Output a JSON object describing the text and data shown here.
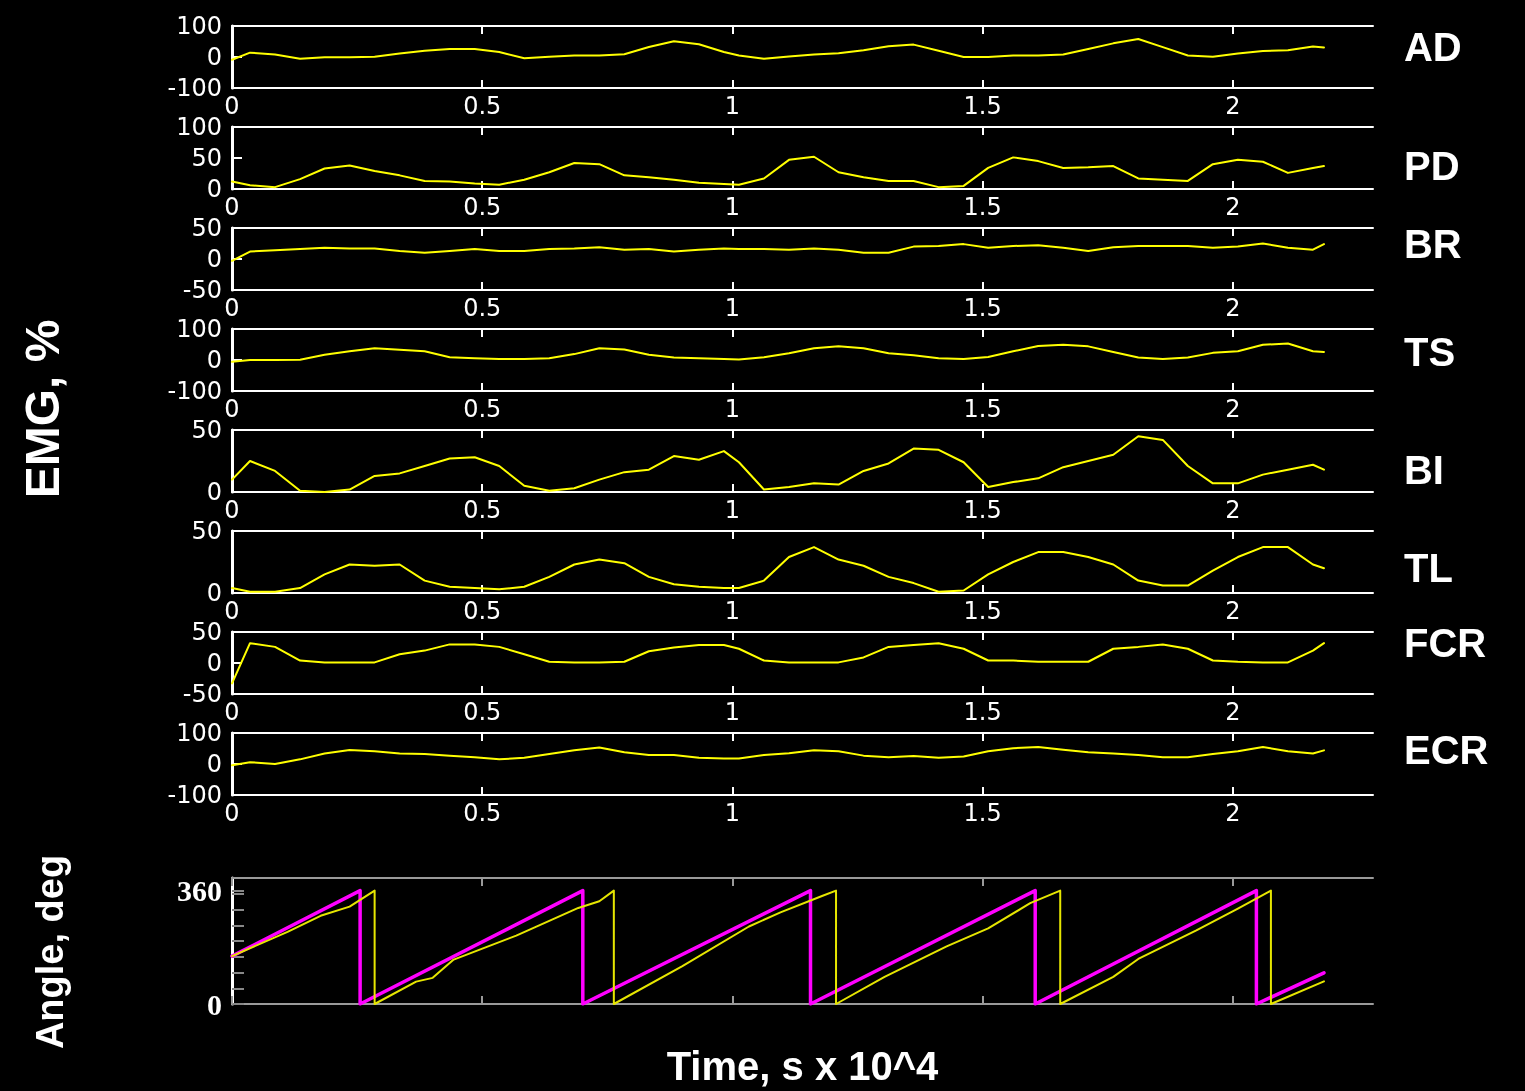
{
  "chart_data": [
    {
      "type": "line",
      "xlim": [
        0,
        2.28
      ],
      "xticks": [
        0,
        0.5,
        1,
        1.5,
        2
      ],
      "ylim": [
        -100,
        100
      ],
      "yticks": [
        -100,
        0,
        100
      ],
      "x": [
        0,
        0.036,
        0.086,
        0.136,
        0.185,
        0.235,
        0.285,
        0.335,
        0.385,
        0.435,
        0.485,
        0.534,
        0.584,
        0.634,
        0.684,
        0.734,
        0.784,
        0.833,
        0.883,
        0.933,
        0.983,
        1.013,
        1.063,
        1.113,
        1.163,
        1.212,
        1.262,
        1.312,
        1.362,
        1.412,
        1.462,
        1.511,
        1.561,
        1.611,
        1.661,
        1.711,
        1.761,
        1.811,
        1.86,
        1.91,
        1.96,
        2.01,
        2.06,
        2.11,
        2.16,
        2.182
      ],
      "series": [
        {
          "name": "AD",
          "color": "#ffff00",
          "values": [
            -9,
            14,
            8,
            -6,
            -1,
            -1,
            1,
            11,
            20,
            26,
            26,
            16,
            -4,
            1,
            5,
            5,
            9,
            32,
            51,
            41,
            16,
            5,
            -6,
            2,
            8,
            12,
            22,
            35,
            40,
            20,
            0,
            0,
            5,
            5,
            8,
            26,
            44,
            58,
            32,
            5,
            1,
            11,
            19,
            22,
            34,
            31
          ]
        }
      ]
    },
    {
      "type": "line",
      "xlim": [
        0,
        2.28
      ],
      "xticks": [
        0,
        0.5,
        1,
        1.5,
        2
      ],
      "ylim": [
        0,
        100
      ],
      "yticks": [
        0,
        50,
        100
      ],
      "x": [
        0,
        0.036,
        0.086,
        0.136,
        0.185,
        0.235,
        0.285,
        0.335,
        0.385,
        0.435,
        0.485,
        0.534,
        0.584,
        0.634,
        0.684,
        0.734,
        0.784,
        0.833,
        0.883,
        0.933,
        0.983,
        1.013,
        1.063,
        1.113,
        1.163,
        1.212,
        1.262,
        1.312,
        1.362,
        1.412,
        1.462,
        1.511,
        1.561,
        1.611,
        1.661,
        1.711,
        1.761,
        1.811,
        1.86,
        1.91,
        1.96,
        2.01,
        2.06,
        2.11,
        2.16,
        2.182
      ],
      "series": [
        {
          "name": "PD",
          "color": "#ffff00",
          "values": [
            12,
            6,
            3,
            16,
            33,
            38,
            29,
            22,
            13,
            12,
            9,
            7,
            15,
            27,
            42,
            40,
            22,
            19,
            15,
            10,
            8,
            7,
            17,
            47,
            52,
            27,
            19,
            13,
            13,
            3,
            5,
            34,
            51,
            45,
            34,
            35,
            37,
            17,
            15,
            13,
            40,
            47,
            44,
            26,
            34,
            37
          ]
        }
      ]
    },
    {
      "type": "line",
      "xlim": [
        0,
        2.28
      ],
      "xticks": [
        0,
        0.5,
        1,
        1.5,
        2
      ],
      "ylim": [
        -50,
        50
      ],
      "yticks": [
        -50,
        0,
        50
      ],
      "x": [
        0,
        0.036,
        0.086,
        0.136,
        0.185,
        0.235,
        0.285,
        0.335,
        0.385,
        0.435,
        0.485,
        0.534,
        0.584,
        0.634,
        0.684,
        0.734,
        0.784,
        0.833,
        0.883,
        0.933,
        0.983,
        1.013,
        1.063,
        1.113,
        1.163,
        1.212,
        1.262,
        1.312,
        1.362,
        1.412,
        1.462,
        1.511,
        1.561,
        1.611,
        1.661,
        1.711,
        1.761,
        1.811,
        1.86,
        1.91,
        1.96,
        2.01,
        2.06,
        2.11,
        2.16,
        2.182
      ],
      "series": [
        {
          "name": "BR",
          "color": "#ffff00",
          "values": [
            -3,
            12,
            14,
            16,
            18,
            17,
            17,
            13,
            10,
            13,
            16,
            13,
            13,
            16,
            17,
            19,
            15,
            16,
            12,
            15,
            17,
            16,
            16,
            15,
            17,
            15,
            10,
            10,
            20,
            21,
            24,
            18,
            21,
            22,
            18,
            13,
            19,
            21,
            21,
            21,
            18,
            20,
            25,
            18,
            15,
            24
          ]
        }
      ]
    },
    {
      "type": "line",
      "ylabel": "EMG, %",
      "xlim": [
        0,
        2.28
      ],
      "xticks": [
        0,
        0.5,
        1,
        1.5,
        2
      ],
      "ylim": [
        -100,
        100
      ],
      "yticks": [
        -100,
        0,
        100
      ],
      "x": [
        0,
        0.036,
        0.086,
        0.136,
        0.185,
        0.235,
        0.285,
        0.335,
        0.385,
        0.435,
        0.485,
        0.534,
        0.584,
        0.634,
        0.684,
        0.734,
        0.784,
        0.833,
        0.883,
        0.933,
        0.983,
        1.013,
        1.063,
        1.113,
        1.163,
        1.212,
        1.262,
        1.312,
        1.362,
        1.412,
        1.462,
        1.511,
        1.561,
        1.611,
        1.661,
        1.711,
        1.761,
        1.811,
        1.86,
        1.91,
        1.96,
        2.01,
        2.06,
        2.11,
        2.16,
        2.182
      ],
      "series": [
        {
          "name": "TS",
          "color": "#ffff00",
          "values": [
            -6,
            0,
            0,
            1,
            17,
            28,
            38,
            33,
            28,
            9,
            6,
            3,
            3,
            6,
            19,
            38,
            34,
            17,
            8,
            6,
            3,
            2,
            9,
            22,
            38,
            44,
            38,
            22,
            15,
            6,
            3,
            10,
            28,
            45,
            49,
            44,
            26,
            8,
            3,
            8,
            23,
            28,
            49,
            53,
            28,
            26
          ]
        }
      ]
    },
    {
      "type": "line",
      "xlim": [
        0,
        2.28
      ],
      "xticks": [
        0,
        0.5,
        1,
        1.5,
        2
      ],
      "ylim": [
        0,
        50
      ],
      "yticks": [
        0,
        50
      ],
      "x": [
        0,
        0.036,
        0.086,
        0.136,
        0.185,
        0.235,
        0.285,
        0.335,
        0.385,
        0.435,
        0.485,
        0.534,
        0.584,
        0.634,
        0.684,
        0.734,
        0.784,
        0.833,
        0.883,
        0.933,
        0.983,
        1.013,
        1.063,
        1.113,
        1.163,
        1.212,
        1.262,
        1.312,
        1.362,
        1.412,
        1.462,
        1.511,
        1.561,
        1.611,
        1.661,
        1.711,
        1.761,
        1.811,
        1.86,
        1.91,
        1.96,
        2.01,
        2.06,
        2.11,
        2.16,
        2.182
      ],
      "series": [
        {
          "name": "BI",
          "color": "#ffff00",
          "values": [
            10,
            25,
            17,
            1,
            0,
            2,
            13,
            15,
            21,
            27,
            28,
            21,
            5,
            1,
            3,
            10,
            16,
            18,
            29,
            26,
            33,
            24,
            2,
            4,
            7,
            6,
            17,
            23,
            35,
            34,
            24,
            4,
            8,
            11,
            20,
            25,
            30,
            45,
            42,
            21,
            7,
            7,
            14,
            18,
            22,
            18
          ]
        }
      ]
    },
    {
      "type": "line",
      "xlim": [
        0,
        2.28
      ],
      "xticks": [
        0,
        0.5,
        1,
        1.5,
        2
      ],
      "ylim": [
        0,
        50
      ],
      "yticks": [
        0,
        50
      ],
      "x": [
        0,
        0.036,
        0.086,
        0.136,
        0.185,
        0.235,
        0.285,
        0.335,
        0.385,
        0.435,
        0.485,
        0.534,
        0.584,
        0.634,
        0.684,
        0.734,
        0.784,
        0.833,
        0.883,
        0.933,
        0.983,
        1.013,
        1.063,
        1.113,
        1.163,
        1.212,
        1.262,
        1.312,
        1.362,
        1.412,
        1.462,
        1.511,
        1.561,
        1.611,
        1.661,
        1.711,
        1.761,
        1.811,
        1.86,
        1.91,
        1.96,
        2.01,
        2.06,
        2.11,
        2.16,
        2.182
      ],
      "series": [
        {
          "name": "TL",
          "color": "#ffff00",
          "values": [
            4,
            1,
            1,
            4,
            15,
            23,
            22,
            23,
            10,
            5,
            4,
            3,
            5,
            13,
            23,
            27,
            24,
            13,
            7,
            5,
            4,
            4,
            10,
            29,
            37,
            27,
            22,
            13,
            8,
            1,
            2,
            15,
            25,
            33,
            33,
            29,
            23,
            10,
            6,
            6,
            18,
            29,
            37,
            37,
            23,
            20
          ]
        }
      ]
    },
    {
      "type": "line",
      "xlim": [
        0,
        2.28
      ],
      "xticks": [
        0,
        0.5,
        1,
        1.5,
        2
      ],
      "ylim": [
        -50,
        50
      ],
      "yticks": [
        -50,
        0,
        50
      ],
      "x": [
        0,
        0.036,
        0.086,
        0.136,
        0.185,
        0.235,
        0.285,
        0.335,
        0.385,
        0.435,
        0.485,
        0.534,
        0.584,
        0.634,
        0.684,
        0.734,
        0.784,
        0.833,
        0.883,
        0.933,
        0.983,
        1.013,
        1.063,
        1.113,
        1.163,
        1.212,
        1.262,
        1.312,
        1.362,
        1.412,
        1.462,
        1.511,
        1.561,
        1.611,
        1.661,
        1.711,
        1.761,
        1.811,
        1.86,
        1.91,
        1.96,
        2.01,
        2.06,
        2.11,
        2.16,
        2.182
      ],
      "series": [
        {
          "name": "FCR",
          "color": "#ffff00",
          "values": [
            -33,
            32,
            26,
            4,
            1,
            1,
            1,
            14,
            20,
            30,
            30,
            26,
            14,
            2,
            1,
            1,
            2,
            19,
            25,
            29,
            29,
            23,
            4,
            1,
            1,
            1,
            9,
            26,
            29,
            32,
            23,
            4,
            4,
            2,
            2,
            2,
            23,
            26,
            30,
            23,
            4,
            2,
            1,
            1,
            20,
            32
          ]
        }
      ]
    },
    {
      "type": "line",
      "xlim": [
        0,
        2.28
      ],
      "xticks": [
        0,
        0.5,
        1,
        1.5,
        2
      ],
      "ylim": [
        -100,
        100
      ],
      "yticks": [
        -100,
        0,
        100
      ],
      "x": [
        0,
        0.036,
        0.086,
        0.136,
        0.185,
        0.235,
        0.285,
        0.335,
        0.385,
        0.435,
        0.485,
        0.534,
        0.584,
        0.634,
        0.684,
        0.734,
        0.784,
        0.833,
        0.883,
        0.933,
        0.983,
        1.013,
        1.063,
        1.113,
        1.163,
        1.212,
        1.262,
        1.312,
        1.362,
        1.412,
        1.462,
        1.511,
        1.561,
        1.611,
        1.661,
        1.711,
        1.761,
        1.811,
        1.86,
        1.91,
        1.96,
        2.01,
        2.06,
        2.11,
        2.16,
        2.182
      ],
      "series": [
        {
          "name": "ECR",
          "color": "#ffff00",
          "values": [
            -4,
            6,
            0,
            15,
            34,
            45,
            41,
            34,
            32,
            27,
            22,
            15,
            20,
            32,
            44,
            53,
            38,
            29,
            29,
            20,
            18,
            18,
            29,
            35,
            44,
            41,
            27,
            22,
            26,
            20,
            24,
            41,
            51,
            55,
            46,
            38,
            34,
            29,
            22,
            22,
            32,
            41,
            55,
            41,
            34,
            44
          ]
        }
      ]
    },
    {
      "type": "line",
      "xlabel": "Time, s x 10^4",
      "ylabel": "Angle, deg",
      "xlim": [
        0,
        2.28
      ],
      "xticks": [
        0,
        0.5,
        1,
        1.5,
        2
      ],
      "ylim": [
        0,
        400
      ],
      "yticks": [
        0,
        {
          "value": 50,
          "label": null
        },
        {
          "value": 100,
          "label": null
        },
        {
          "value": 150,
          "label": null
        },
        {
          "value": 200,
          "label": null
        },
        {
          "value": 250,
          "label": null
        },
        {
          "value": 300,
          "label": null
        },
        {
          "value": 350,
          "label": null
        },
        360
      ],
      "tick_labels": "y",
      "series": [
        {
          "color": "#ff00ff",
          "x": [
            0,
            0.256,
            0.256,
            0.701,
            0.701,
            1.156,
            1.156,
            1.605,
            1.605,
            2.047,
            2.047,
            2.182
          ],
          "values": [
            152,
            360,
            0,
            360,
            0,
            360,
            0,
            360,
            0,
            360,
            0,
            99
          ]
        },
        {
          "color": "#e6e600",
          "x": [
            0,
            0.111,
            0.177,
            0.235,
            0.285,
            0.285,
            0.368,
            0.401,
            0.443,
            0.568,
            0.692,
            0.734,
            0.763,
            0.763,
            0.9,
            1.033,
            1.096,
            1.179,
            1.207,
            1.207,
            1.304,
            1.428,
            1.511,
            1.595,
            1.655,
            1.655,
            1.761,
            1.811,
            1.927,
            2.01,
            2.076,
            2.076,
            2.182
          ],
          "values": [
            152,
            229,
            280,
            309,
            360,
            0,
            71,
            83,
            141,
            217,
            305,
            326,
            360,
            0,
            120,
            246,
            291,
            343,
            360,
            0,
            86,
            183,
            240,
            320,
            360,
            0,
            86,
            143,
            234,
            303,
            360,
            0,
            72
          ]
        }
      ]
    }
  ]
}
